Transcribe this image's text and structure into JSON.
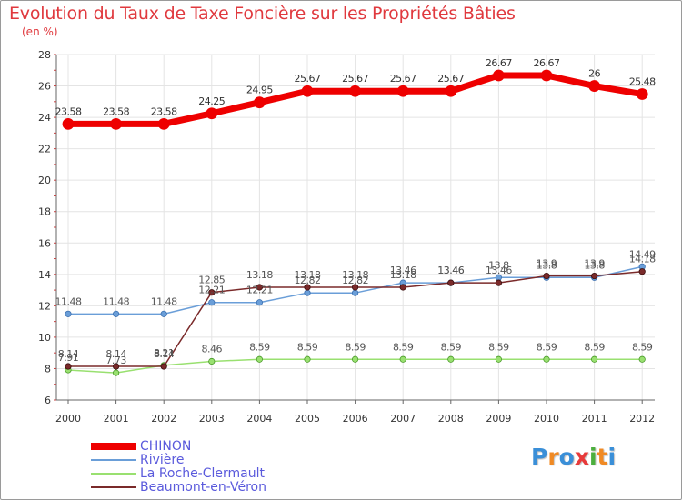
{
  "header": {
    "title": "Evolution du Taux de Taxe Foncière sur les Propriétés Bâties",
    "subtitle": "(en %)"
  },
  "logo": {
    "letters": [
      "P",
      "r",
      "o",
      "x",
      "i",
      "t",
      "i"
    ],
    "colors": [
      "#3a8fd8",
      "#f08a24",
      "#3a8fd8",
      "#e83a3a",
      "#4caf3e",
      "#f08a24",
      "#3a8fd8"
    ]
  },
  "chart_data": {
    "type": "line",
    "title": "Evolution du Taux de Taxe Foncière sur les Propriétés Bâties",
    "ylabel": "(en %)",
    "xlabel": "",
    "ylim": [
      6,
      28
    ],
    "yticks": [
      6,
      8,
      10,
      12,
      14,
      16,
      18,
      20,
      22,
      24,
      26,
      28
    ],
    "grid": true,
    "legend_position": "bottom-left",
    "x": [
      "2000",
      "2001",
      "2002",
      "2003",
      "2004",
      "2005",
      "2006",
      "2007",
      "2008",
      "2009",
      "2010",
      "2011",
      "2012"
    ],
    "series": [
      {
        "name": "CHINON",
        "color": "#ee0000",
        "values": [
          23.58,
          23.58,
          23.58,
          24.25,
          24.95,
          25.67,
          25.67,
          25.67,
          25.67,
          26.67,
          26.67,
          26,
          25.48
        ],
        "labels": [
          "23.58",
          "23.58",
          "23.58",
          "24.25",
          "24.95",
          "25.67",
          "25.67",
          "25.67",
          "25.67",
          "26.67",
          "26.67",
          "26",
          "25.48"
        ]
      },
      {
        "name": "Rivière",
        "color": "#6a9ed8",
        "values": [
          11.48,
          11.48,
          11.48,
          12.21,
          12.21,
          12.82,
          12.82,
          13.46,
          13.46,
          13.8,
          13.8,
          13.8,
          14.49
        ],
        "labels": [
          "11.48",
          "11.48",
          "11.48",
          "12.21",
          "12.21",
          "12.82",
          "12.82",
          "13.46",
          "13.46",
          "13.8",
          "13.8",
          "13.8",
          "14.49"
        ]
      },
      {
        "name": "La Roche-Clermault",
        "color": "#99e070",
        "values": [
          7.91,
          7.73,
          8.21,
          8.46,
          8.59,
          8.59,
          8.59,
          8.59,
          8.59,
          8.59,
          8.59,
          8.59,
          8.59
        ],
        "labels": [
          "7.91",
          "7.73",
          "8.21",
          "8.46",
          "8.59",
          "8.59",
          "8.59",
          "8.59",
          "8.59",
          "8.59",
          "8.59",
          "8.59",
          "8.59"
        ]
      },
      {
        "name": "Beaumont-en-Véron",
        "color": "#7a2a2a",
        "values": [
          8.14,
          8.14,
          8.14,
          12.85,
          13.18,
          13.18,
          13.18,
          13.18,
          13.46,
          13.46,
          13.9,
          13.9,
          14.18
        ],
        "labels": [
          "8.14",
          "8.14",
          "8.14",
          "12.85",
          "13.18",
          "13.18",
          "13.18",
          "13.18",
          "13.46",
          "13.46",
          "13.9",
          "13.9",
          "14.18"
        ]
      }
    ]
  }
}
